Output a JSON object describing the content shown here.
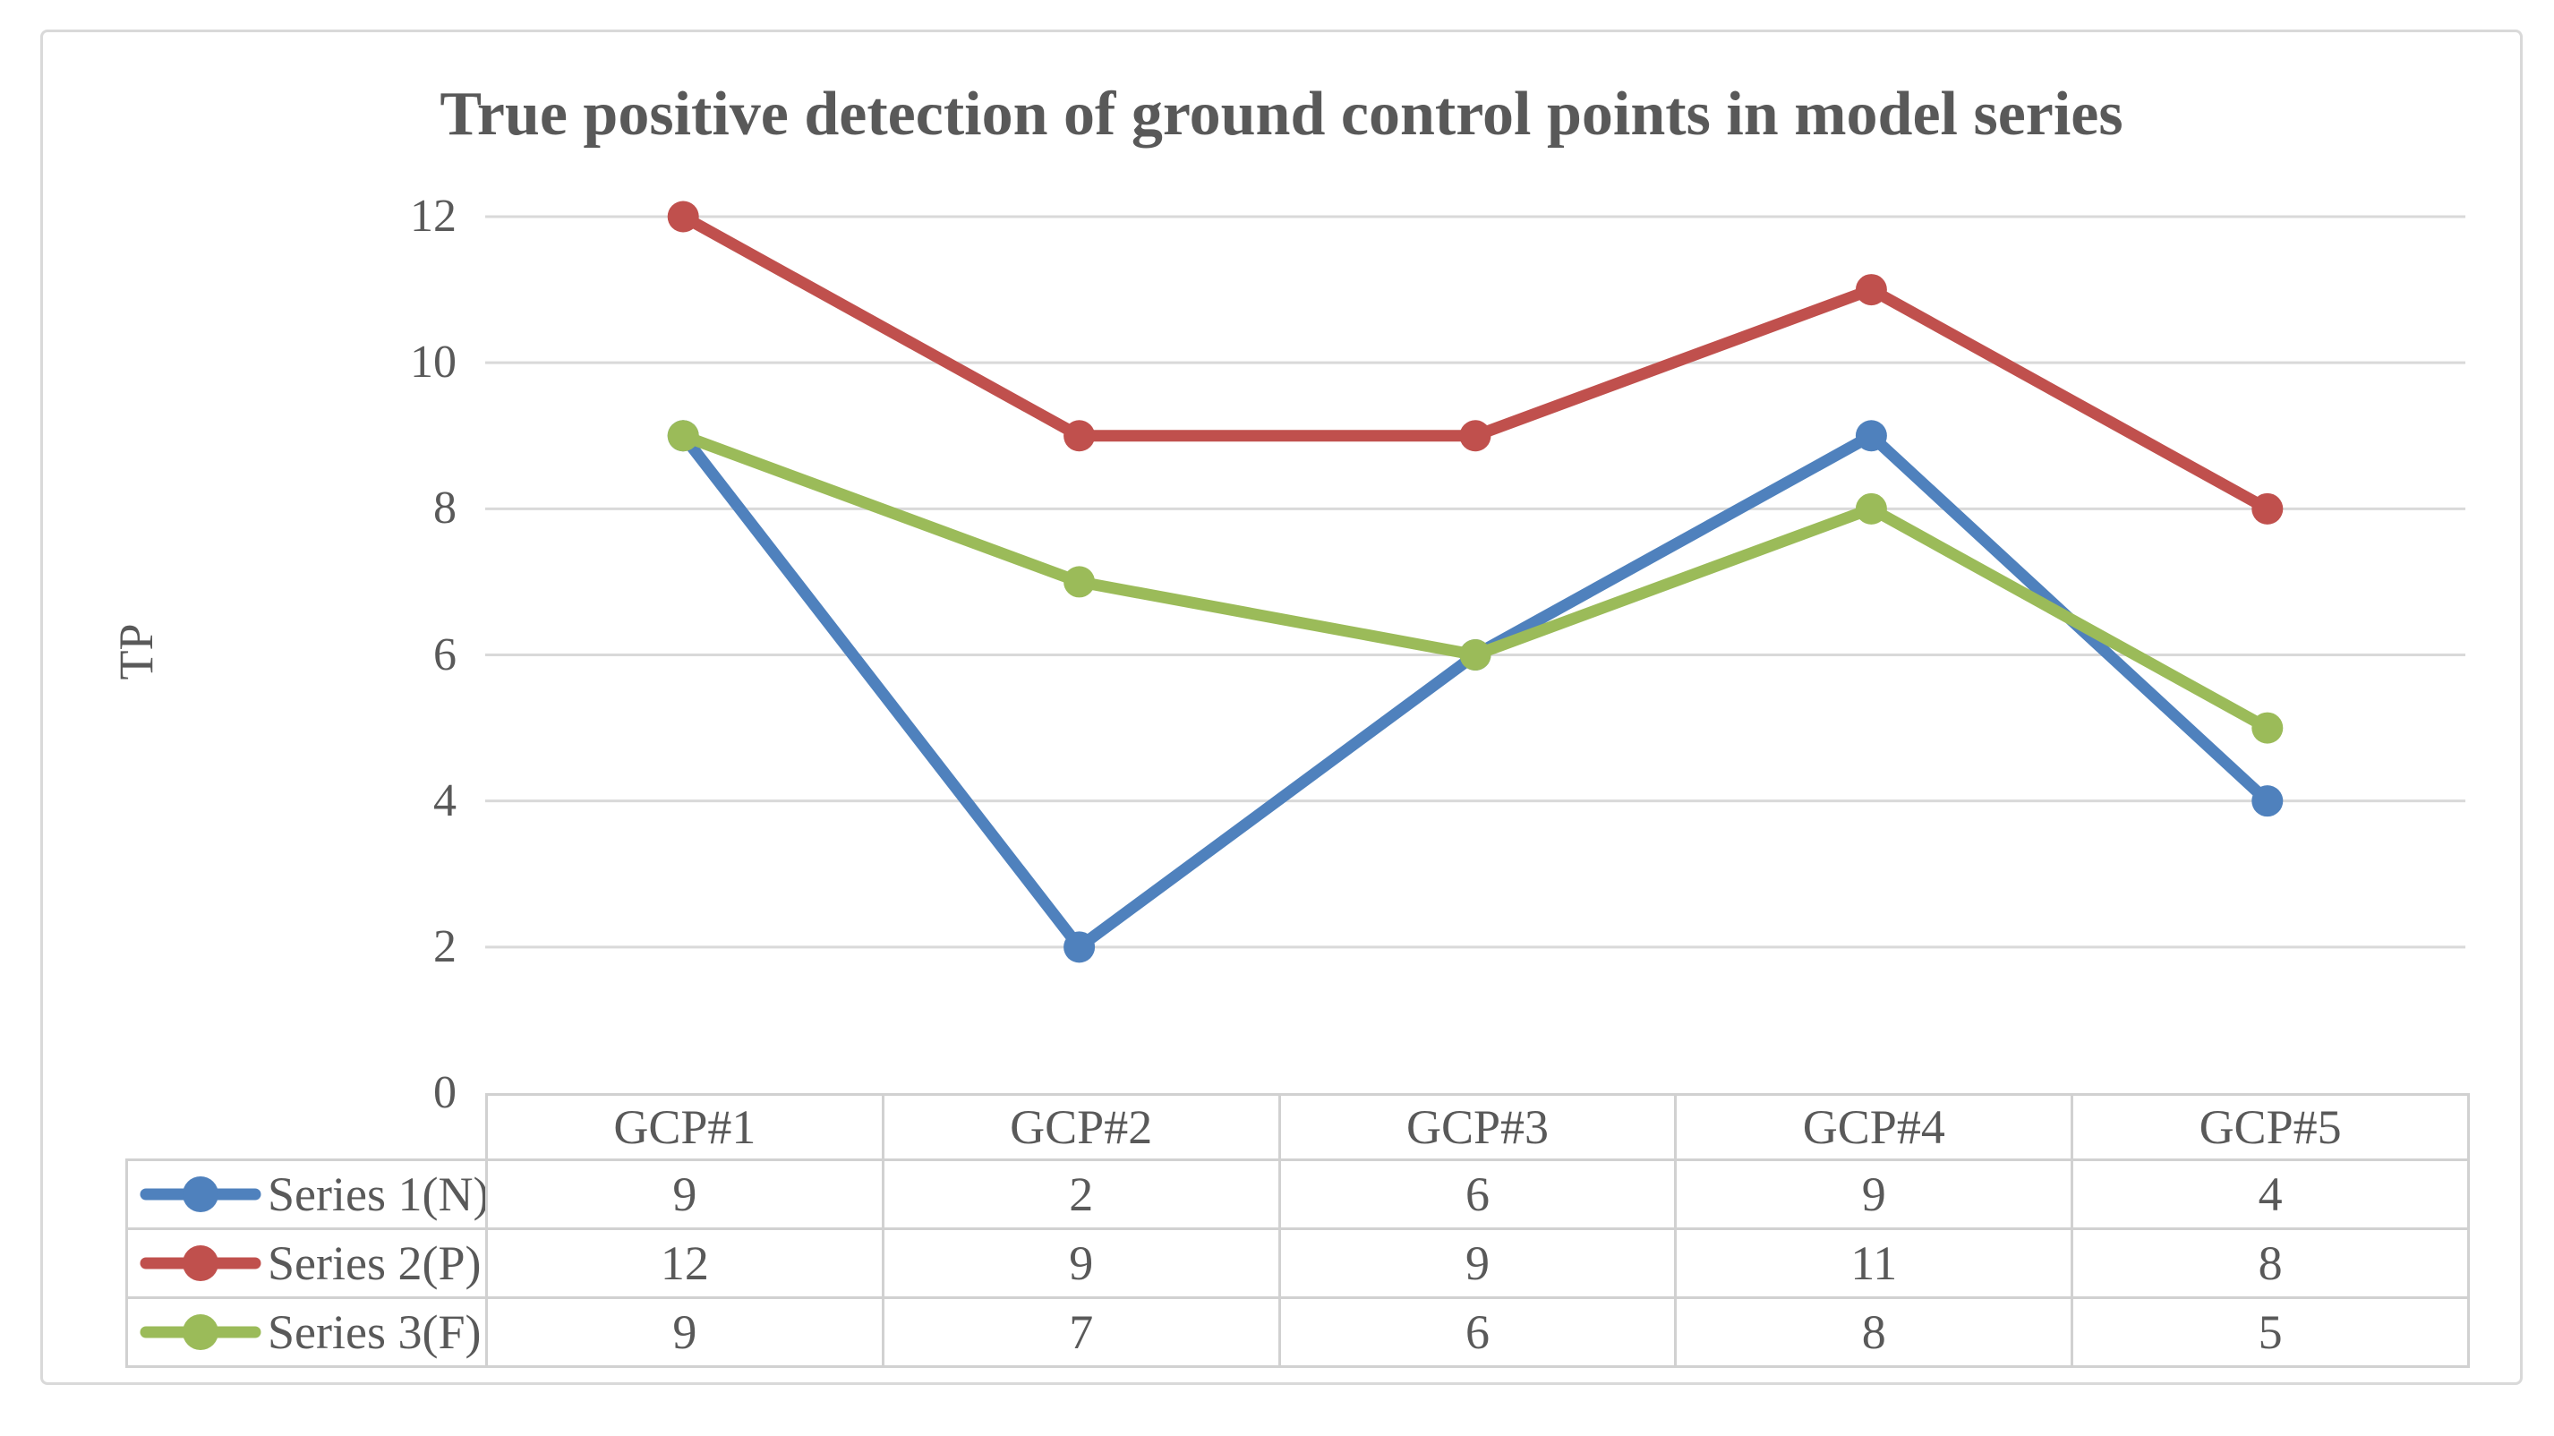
{
  "chart_data": {
    "type": "line",
    "title": "True positive detection of ground control points in model series",
    "xlabel": "",
    "ylabel": "TP",
    "categories": [
      "GCP#1",
      "GCP#2",
      "GCP#3",
      "GCP#4",
      "GCP#5"
    ],
    "series": [
      {
        "name": "Series 1(N)",
        "color": "#4F81BD",
        "values": [
          9,
          2,
          6,
          9,
          4
        ]
      },
      {
        "name": "Series 2(P)",
        "color": "#C0504D",
        "values": [
          12,
          9,
          9,
          11,
          8
        ]
      },
      {
        "name": "Series 3(F)",
        "color": "#9BBB59",
        "values": [
          9,
          7,
          6,
          8,
          5
        ]
      }
    ],
    "ylim": [
      0,
      12
    ],
    "ytick_step": 2,
    "yticks": [
      12,
      10,
      8,
      6,
      4,
      2,
      0
    ],
    "grid": "horizontal",
    "legend_position": "table-left-column",
    "marker": "circle",
    "colors": {
      "text": "#595959",
      "gridline": "#D9D9D9",
      "table_border": "#D1D1D1",
      "frame_border": "#D9D9D9",
      "background": "#FFFFFF"
    }
  }
}
